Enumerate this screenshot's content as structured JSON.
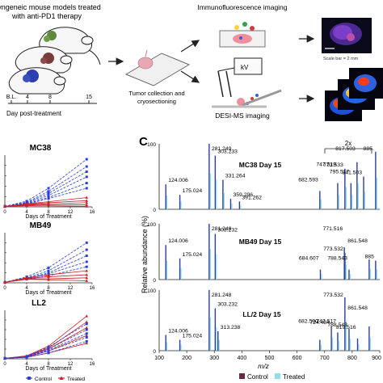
{
  "workflow": {
    "title_line1": "Syngeneic mouse models treated",
    "title_line2": "with anti-PD1 therapy",
    "timeline_ticks": [
      "B.L.",
      "4",
      "8",
      "15"
    ],
    "timeline_label": "Day post-treatment",
    "tumor_step_line1": "Tumor collection and",
    "tumor_step_line2": "cryosectioning",
    "if_label": "Immunofluorescence imaging",
    "scale_bar": "Scale bar = 2 mm",
    "kv_label": "kV",
    "desi_label": "DESI-MS imaging"
  },
  "growth_panels": {
    "x_label": "Days of Treatment",
    "x_ticks": [
      "0",
      "4",
      "8",
      "12",
      "16"
    ],
    "legend": {
      "control": "Control",
      "treated": "Treated"
    },
    "colors": {
      "control": "#2b3fd6",
      "treated": "#c8202c"
    }
  },
  "spectra": {
    "panel_label": "C",
    "y_label": "Relative abundance (%)",
    "x_label": "m/z",
    "y_ticks": [
      "0",
      "100"
    ],
    "x_ticks": [
      "100",
      "200",
      "300",
      "400",
      "500",
      "600",
      "700",
      "800",
      "900"
    ],
    "zoom_label": "2x",
    "legend": {
      "control": "Control",
      "treated": "Treated"
    },
    "colors": {
      "control": "#6a2a45",
      "treated": "#8fe0ea",
      "peak": "#2a3e9a"
    }
  },
  "chart_data": [
    {
      "type": "line",
      "title": "MC38",
      "xlabel": "Days of Treatment",
      "x": [
        0,
        4,
        8,
        15
      ],
      "xlim": [
        0,
        16
      ],
      "series": [
        {
          "name": "Control",
          "values": [
            0.05,
            0.55,
            1.8,
            4.6
          ]
        },
        {
          "name": "Control",
          "values": [
            0.05,
            0.45,
            1.5,
            3.9
          ]
        },
        {
          "name": "Control",
          "values": [
            0.05,
            0.4,
            1.3,
            3.4
          ]
        },
        {
          "name": "Control",
          "values": [
            0.05,
            0.35,
            1.1,
            2.9
          ]
        },
        {
          "name": "Control",
          "values": [
            0.05,
            0.3,
            0.9,
            2.3
          ]
        },
        {
          "name": "Control",
          "values": [
            0.05,
            0.25,
            0.8,
            1.8
          ]
        },
        {
          "name": "Treated",
          "values": [
            0.05,
            0.3,
            0.5,
            0.9
          ]
        },
        {
          "name": "Treated",
          "values": [
            0.05,
            0.25,
            0.4,
            0.6
          ]
        },
        {
          "name": "Treated",
          "values": [
            0.05,
            0.2,
            0.3,
            0.4
          ]
        },
        {
          "name": "Treated",
          "values": [
            0.05,
            0.15,
            0.2,
            0.2
          ]
        },
        {
          "name": "Treated",
          "values": [
            0.05,
            0.1,
            0.1,
            0.05
          ]
        }
      ]
    },
    {
      "type": "line",
      "title": "MB49",
      "xlabel": "Days of Treatment",
      "x": [
        0,
        4,
        8,
        15
      ],
      "xlim": [
        0,
        16
      ],
      "series": [
        {
          "name": "Control",
          "values": [
            0.05,
            0.6,
            1.5,
            4.0
          ]
        },
        {
          "name": "Control",
          "values": [
            0.05,
            0.5,
            1.2,
            3.3
          ]
        },
        {
          "name": "Control",
          "values": [
            0.05,
            0.45,
            1.0,
            2.7
          ]
        },
        {
          "name": "Control",
          "values": [
            0.05,
            0.4,
            0.9,
            2.1
          ]
        },
        {
          "name": "Control",
          "values": [
            0.05,
            0.35,
            0.7,
            1.6
          ]
        },
        {
          "name": "Treated",
          "values": [
            0.05,
            0.5,
            0.8,
            1.2
          ]
        },
        {
          "name": "Treated",
          "values": [
            0.05,
            0.45,
            0.6,
            0.8
          ]
        },
        {
          "name": "Treated",
          "values": [
            0.05,
            0.4,
            0.4,
            0.5
          ]
        },
        {
          "name": "Treated",
          "values": [
            0.05,
            0.35,
            0.3,
            0.2
          ]
        }
      ]
    },
    {
      "type": "line",
      "title": "LL2",
      "xlabel": "Days of Treatment",
      "x": [
        0,
        4,
        8,
        15
      ],
      "xlim": [
        0,
        16
      ],
      "series": [
        {
          "name": "Treated",
          "values": [
            0.05,
            0.3,
            1.3,
            4.4
          ]
        },
        {
          "name": "Treated",
          "values": [
            0.05,
            0.28,
            1.1,
            3.8
          ]
        },
        {
          "name": "Treated",
          "values": [
            0.05,
            0.25,
            1.0,
            3.2
          ]
        },
        {
          "name": "Treated",
          "values": [
            0.05,
            0.2,
            0.8,
            2.4
          ]
        },
        {
          "name": "Treated",
          "values": [
            0.05,
            0.15,
            0.6,
            1.6
          ]
        },
        {
          "name": "Control",
          "values": [
            0.05,
            0.25,
            1.2,
            3.6
          ]
        },
        {
          "name": "Control",
          "values": [
            0.05,
            0.22,
            1.0,
            3.0
          ]
        },
        {
          "name": "Control",
          "values": [
            0.05,
            0.2,
            0.9,
            2.6
          ]
        },
        {
          "name": "Control",
          "values": [
            0.05,
            0.18,
            0.8,
            2.2
          ]
        },
        {
          "name": "Control",
          "values": [
            0.05,
            0.15,
            0.6,
            1.8
          ]
        }
      ]
    },
    {
      "type": "bar",
      "title": "MC38 Day 15",
      "xlabel": "m/z",
      "ylabel": "Relative abundance (%)",
      "xlim": [
        100,
        900
      ],
      "ylim": [
        0,
        100
      ],
      "peaks": [
        {
          "x": 124.006,
          "y": 38,
          "label": "124.006"
        },
        {
          "x": 175.024,
          "y": 22,
          "label": "175.024"
        },
        {
          "x": 281.249,
          "y": 100,
          "label": "281.249"
        },
        {
          "x": 303.233,
          "y": 82,
          "label": "303.233"
        },
        {
          "x": 331.264,
          "y": 45,
          "label": "331.264"
        },
        {
          "x": 359.296,
          "y": 16,
          "label": "359.296"
        },
        {
          "x": 391.262,
          "y": 12,
          "label": "391.262"
        },
        {
          "x": 682.593,
          "y": 28,
          "label": "682.593"
        },
        {
          "x": 747.519,
          "y": 40,
          "label": "747.519"
        },
        {
          "x": 773.533,
          "y": 62,
          "label": "773.533"
        },
        {
          "x": 795.517,
          "y": 40,
          "label": "795.517"
        },
        {
          "x": 817.503,
          "y": 72,
          "label": "817.503"
        },
        {
          "x": 841.503,
          "y": 50,
          "label": "841.503"
        },
        {
          "x": 885,
          "y": 88,
          "label": "885."
        }
      ]
    },
    {
      "type": "bar",
      "title": "MB49 Day 15",
      "xlabel": "m/z",
      "xlim": [
        100,
        900
      ],
      "ylim": [
        0,
        100
      ],
      "peaks": [
        {
          "x": 124.006,
          "y": 62,
          "label": "124.006"
        },
        {
          "x": 175.024,
          "y": 38,
          "label": "175.024"
        },
        {
          "x": 281.248,
          "y": 100,
          "label": "281.248"
        },
        {
          "x": 303.232,
          "y": 82,
          "label": "303.232"
        },
        {
          "x": 684.607,
          "y": 18,
          "label": "684.607"
        },
        {
          "x": 771.516,
          "y": 58,
          "label": "771.516"
        },
        {
          "x": 773.532,
          "y": 48,
          "label": "773.532"
        },
        {
          "x": 788.543,
          "y": 18,
          "label": "788.543"
        },
        {
          "x": 861.548,
          "y": 36,
          "label": "861.548"
        },
        {
          "x": 885,
          "y": 34,
          "label": "885"
        }
      ]
    },
    {
      "type": "bar",
      "title": "LL/2 Day 15",
      "xlabel": "m/z",
      "xlim": [
        100,
        900
      ],
      "ylim": [
        0,
        100
      ],
      "peaks": [
        {
          "x": 124.006,
          "y": 26,
          "label": "124.006"
        },
        {
          "x": 175.024,
          "y": 18,
          "label": "175.024"
        },
        {
          "x": 281.248,
          "y": 100,
          "label": "281.248"
        },
        {
          "x": 303.232,
          "y": 70,
          "label": "303.232"
        },
        {
          "x": 313.238,
          "y": 32,
          "label": "313.238"
        },
        {
          "x": 682.59,
          "y": 18,
          "label": "682.590"
        },
        {
          "x": 724.484,
          "y": 40,
          "label": "724.484"
        },
        {
          "x": 747.517,
          "y": 30,
          "label": "747.517"
        },
        {
          "x": 773.532,
          "y": 88,
          "label": "773.532"
        },
        {
          "x": 788.543,
          "y": 36,
          "label": "788.543"
        },
        {
          "x": 819.516,
          "y": 20,
          "label": "819.516"
        },
        {
          "x": 861.548,
          "y": 40,
          "label": "861.548"
        }
      ]
    }
  ]
}
